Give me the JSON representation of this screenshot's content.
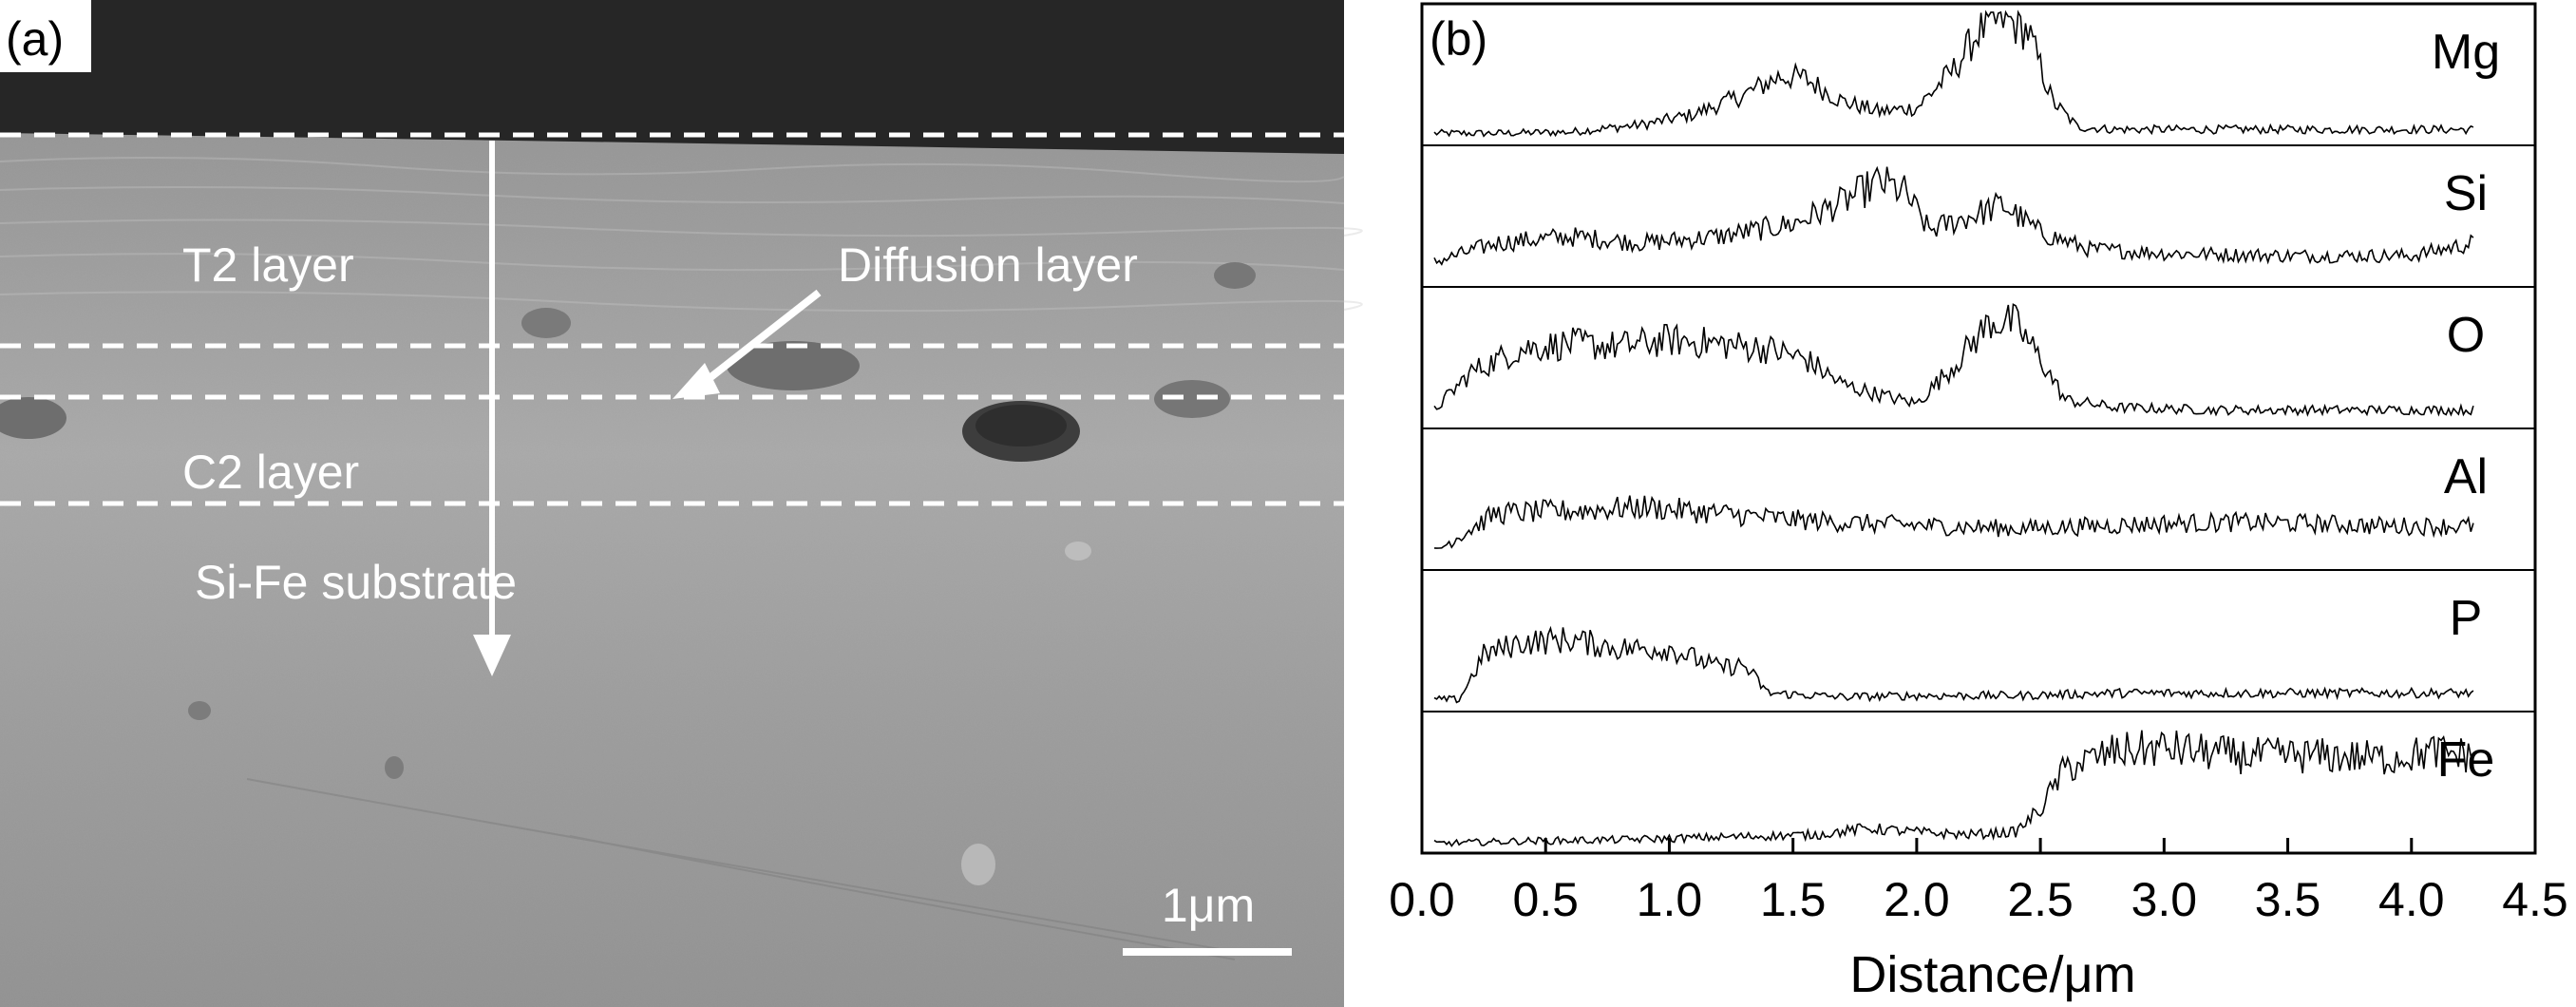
{
  "panel_a": {
    "label": "(a)",
    "annotations": {
      "t2_layer": "T2 layer",
      "diffusion_layer": "Diffusion layer",
      "c2_layer": "C2 layer",
      "substrate": "Si-Fe substrate"
    },
    "scale_bar": "1μm",
    "colors": {
      "coating_top": "#2a2a2a",
      "micrograph": "#9a9a9a",
      "marks": "#ffffff"
    }
  },
  "panel_b": {
    "label": "(b)"
  },
  "chart_data": {
    "type": "line",
    "xlabel": "Distance/μm",
    "xlim": [
      0.0,
      4.5
    ],
    "x_ticks": [
      "0.0",
      "0.5",
      "1.0",
      "1.5",
      "2.0",
      "2.5",
      "3.0",
      "3.5",
      "4.0",
      "4.5"
    ],
    "x_tick_values": [
      0.0,
      0.5,
      1.0,
      1.5,
      2.0,
      2.5,
      3.0,
      3.5,
      4.0,
      4.5
    ],
    "x_range_data": [
      0.05,
      4.25
    ],
    "ylabel": "",
    "y_scale": "relative intensity, stacked panels (no y ticks)",
    "grid": false,
    "line_color": "#000000",
    "series": [
      {
        "name": "Mg",
        "x": [
          0.05,
          0.3,
          0.6,
          0.9,
          1.1,
          1.3,
          1.45,
          1.55,
          1.7,
          1.85,
          2.0,
          2.15,
          2.25,
          2.35,
          2.45,
          2.55,
          2.65,
          2.8,
          3.2,
          3.6,
          4.0,
          4.25
        ],
        "y": [
          0.05,
          0.05,
          0.06,
          0.12,
          0.2,
          0.35,
          0.5,
          0.48,
          0.3,
          0.22,
          0.25,
          0.55,
          0.85,
          0.95,
          0.85,
          0.3,
          0.1,
          0.08,
          0.08,
          0.08,
          0.08,
          0.08
        ]
      },
      {
        "name": "Si",
        "x": [
          0.05,
          0.3,
          0.6,
          0.9,
          1.2,
          1.5,
          1.7,
          1.85,
          1.95,
          2.05,
          2.2,
          2.35,
          2.5,
          2.7,
          3.0,
          3.5,
          4.0,
          4.25
        ],
        "y": [
          0.15,
          0.3,
          0.35,
          0.3,
          0.35,
          0.45,
          0.62,
          0.78,
          0.7,
          0.4,
          0.5,
          0.6,
          0.38,
          0.25,
          0.22,
          0.2,
          0.2,
          0.3
        ]
      },
      {
        "name": "O",
        "x": [
          0.05,
          0.2,
          0.4,
          0.6,
          0.8,
          1.0,
          1.2,
          1.4,
          1.55,
          1.7,
          1.85,
          2.0,
          2.15,
          2.3,
          2.4,
          2.5,
          2.6,
          2.8,
          3.2,
          3.6,
          4.0,
          4.25
        ],
        "y": [
          0.1,
          0.4,
          0.58,
          0.62,
          0.6,
          0.65,
          0.62,
          0.58,
          0.5,
          0.3,
          0.22,
          0.15,
          0.45,
          0.8,
          0.78,
          0.5,
          0.18,
          0.12,
          0.1,
          0.1,
          0.1,
          0.1
        ]
      },
      {
        "name": "Al",
        "x": [
          0.05,
          0.3,
          0.6,
          0.9,
          1.2,
          1.5,
          1.8,
          2.1,
          2.4,
          2.7,
          3.0,
          3.3,
          3.6,
          3.9,
          4.25
        ],
        "y": [
          0.1,
          0.4,
          0.42,
          0.45,
          0.4,
          0.35,
          0.32,
          0.3,
          0.28,
          0.3,
          0.32,
          0.33,
          0.32,
          0.3,
          0.3
        ]
      },
      {
        "name": "P",
        "x": [
          0.05,
          0.15,
          0.25,
          0.4,
          0.6,
          0.8,
          1.0,
          1.2,
          1.3,
          1.4,
          1.7,
          2.0,
          2.4,
          2.8,
          3.2,
          3.6,
          4.0,
          4.25
        ],
        "y": [
          0.05,
          0.05,
          0.4,
          0.5,
          0.52,
          0.45,
          0.45,
          0.3,
          0.32,
          0.1,
          0.07,
          0.08,
          0.08,
          0.1,
          0.1,
          0.1,
          0.1,
          0.1
        ]
      },
      {
        "name": "Fe",
        "x": [
          0.05,
          0.4,
          0.8,
          1.2,
          1.6,
          1.8,
          2.0,
          2.2,
          2.4,
          2.5,
          2.6,
          2.8,
          3.0,
          3.3,
          3.6,
          3.9,
          4.1,
          4.25
        ],
        "y": [
          0.03,
          0.05,
          0.06,
          0.08,
          0.1,
          0.15,
          0.12,
          0.1,
          0.12,
          0.3,
          0.62,
          0.75,
          0.78,
          0.72,
          0.72,
          0.7,
          0.75,
          0.72
        ]
      }
    ]
  }
}
